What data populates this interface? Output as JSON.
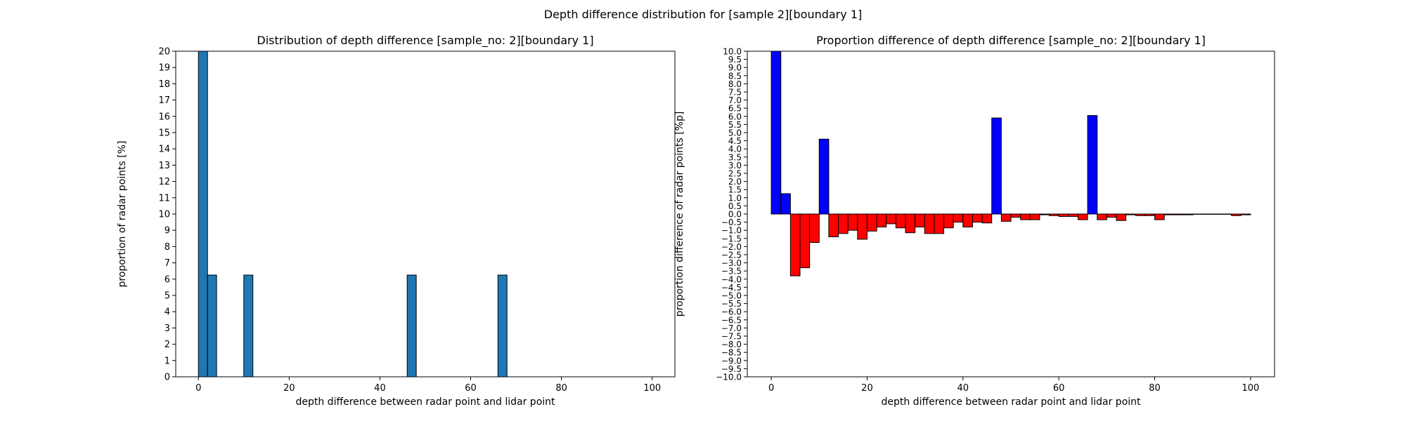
{
  "figure": {
    "suptitle": "Depth difference distribution for [sample 2][boundary 1]"
  },
  "chart_data": [
    {
      "type": "bar",
      "title": "Distribution of depth difference [sample_no: 2][boundary 1]",
      "xlabel": "depth difference between radar point and lidar point",
      "ylabel": "proportion of radar points [%]",
      "xlim": [
        -5,
        105
      ],
      "ylim": [
        0,
        20
      ],
      "x_ticks": [
        0,
        20,
        40,
        60,
        80,
        100
      ],
      "y_ticks": [
        0,
        1,
        2,
        3,
        4,
        5,
        6,
        7,
        8,
        9,
        10,
        11,
        12,
        13,
        14,
        15,
        16,
        17,
        18,
        19,
        20
      ],
      "bin_width": 2,
      "bar_color": "#1f77b4",
      "edge_color": "#000000",
      "bins": [
        {
          "x0": 0,
          "value": 20
        },
        {
          "x0": 2,
          "value": 6.25
        },
        {
          "x0": 10,
          "value": 6.25
        },
        {
          "x0": 46,
          "value": 6.25
        },
        {
          "x0": 66,
          "value": 6.25
        }
      ]
    },
    {
      "type": "bar",
      "title": "Proportion difference of depth difference [sample_no: 2][boundary 1]",
      "xlabel": "depth difference between radar point and lidar point",
      "ylabel": "proportion difference of radar points [%p]",
      "xlim": [
        -5,
        105
      ],
      "ylim": [
        -10,
        10
      ],
      "x_ticks": [
        0,
        20,
        40,
        60,
        80,
        100
      ],
      "y_ticks": [
        10.0,
        9.5,
        9.0,
        8.5,
        8.0,
        7.5,
        7.0,
        6.5,
        6.0,
        5.5,
        5.0,
        4.5,
        4.0,
        3.5,
        3.0,
        2.5,
        2.0,
        1.5,
        1.0,
        0.5,
        0.0,
        -0.5,
        -1.0,
        -1.5,
        -2.0,
        -2.5,
        -3.0,
        -3.5,
        -4.0,
        -4.5,
        -5.0,
        -5.5,
        -6.0,
        -6.5,
        -7.0,
        -7.5,
        -8.0,
        -8.5,
        -9.0,
        -9.5,
        -10.0
      ],
      "bin_width": 2,
      "positive_color": "#0000ff",
      "negative_color": "#ff0000",
      "edge_color": "#000000",
      "bins": [
        {
          "x0": 0,
          "value": 10.0
        },
        {
          "x0": 2,
          "value": 1.25
        },
        {
          "x0": 4,
          "value": -3.8
        },
        {
          "x0": 6,
          "value": -3.3
        },
        {
          "x0": 8,
          "value": -1.75
        },
        {
          "x0": 10,
          "value": 4.6
        },
        {
          "x0": 12,
          "value": -1.4
        },
        {
          "x0": 14,
          "value": -1.2
        },
        {
          "x0": 16,
          "value": -1.0
        },
        {
          "x0": 18,
          "value": -1.55
        },
        {
          "x0": 20,
          "value": -1.05
        },
        {
          "x0": 22,
          "value": -0.8
        },
        {
          "x0": 24,
          "value": -0.6
        },
        {
          "x0": 26,
          "value": -0.85
        },
        {
          "x0": 28,
          "value": -1.15
        },
        {
          "x0": 30,
          "value": -0.8
        },
        {
          "x0": 32,
          "value": -1.2
        },
        {
          "x0": 34,
          "value": -1.2
        },
        {
          "x0": 36,
          "value": -0.85
        },
        {
          "x0": 38,
          "value": -0.5
        },
        {
          "x0": 40,
          "value": -0.8
        },
        {
          "x0": 42,
          "value": -0.5
        },
        {
          "x0": 44,
          "value": -0.55
        },
        {
          "x0": 46,
          "value": 5.9
        },
        {
          "x0": 48,
          "value": -0.45
        },
        {
          "x0": 50,
          "value": -0.2
        },
        {
          "x0": 52,
          "value": -0.35
        },
        {
          "x0": 54,
          "value": -0.35
        },
        {
          "x0": 56,
          "value": -0.05
        },
        {
          "x0": 58,
          "value": -0.1
        },
        {
          "x0": 60,
          "value": -0.15
        },
        {
          "x0": 62,
          "value": -0.15
        },
        {
          "x0": 64,
          "value": -0.35
        },
        {
          "x0": 66,
          "value": 6.05
        },
        {
          "x0": 68,
          "value": -0.35
        },
        {
          "x0": 70,
          "value": -0.2
        },
        {
          "x0": 72,
          "value": -0.4
        },
        {
          "x0": 74,
          "value": -0.05
        },
        {
          "x0": 76,
          "value": -0.1
        },
        {
          "x0": 78,
          "value": -0.1
        },
        {
          "x0": 80,
          "value": -0.35
        },
        {
          "x0": 82,
          "value": -0.05
        },
        {
          "x0": 84,
          "value": -0.05
        },
        {
          "x0": 86,
          "value": -0.05
        },
        {
          "x0": 88,
          "value": -0.02
        },
        {
          "x0": 90,
          "value": -0.02
        },
        {
          "x0": 92,
          "value": -0.02
        },
        {
          "x0": 94,
          "value": -0.02
        },
        {
          "x0": 96,
          "value": -0.1
        },
        {
          "x0": 98,
          "value": -0.05
        }
      ]
    }
  ]
}
